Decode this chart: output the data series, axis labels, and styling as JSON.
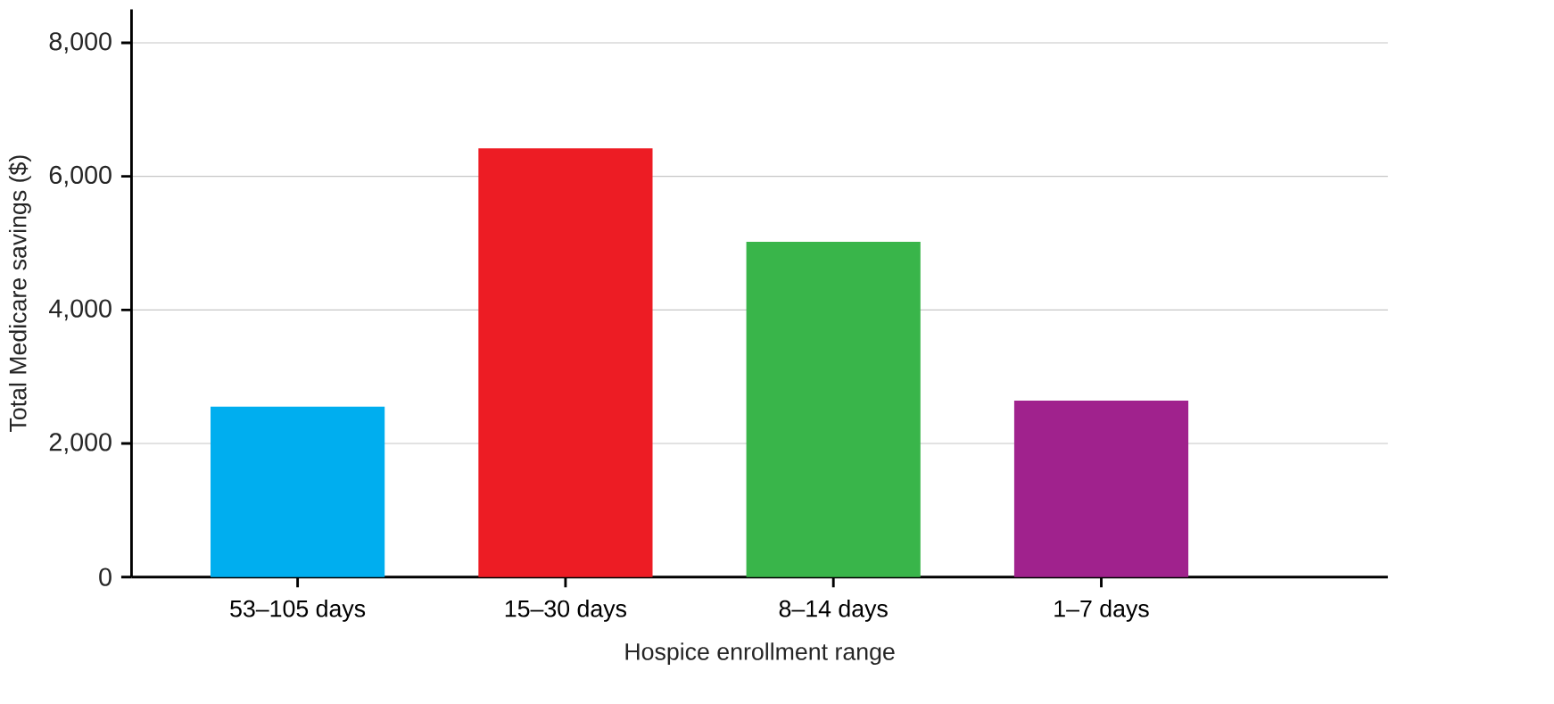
{
  "chart_data": {
    "type": "bar",
    "xlabel": "Hospice enrollment range",
    "ylabel": "Total Medicare savings ($)",
    "categories": [
      "53–105 days",
      "15–30 days",
      "8–14 days",
      "1–7 days"
    ],
    "values": [
      2550,
      6420,
      5020,
      2640
    ],
    "colors": [
      "#00aeef",
      "#ed1c24",
      "#39b54a",
      "#a0228d"
    ],
    "ylim": [
      0,
      8500
    ],
    "yticks": [
      {
        "value": 0,
        "label": "0"
      },
      {
        "value": 2000,
        "label": "2,000"
      },
      {
        "value": 4000,
        "label": "4,000"
      },
      {
        "value": 6000,
        "label": "6,000"
      },
      {
        "value": 8000,
        "label": "8,000"
      }
    ],
    "grid": "y"
  }
}
